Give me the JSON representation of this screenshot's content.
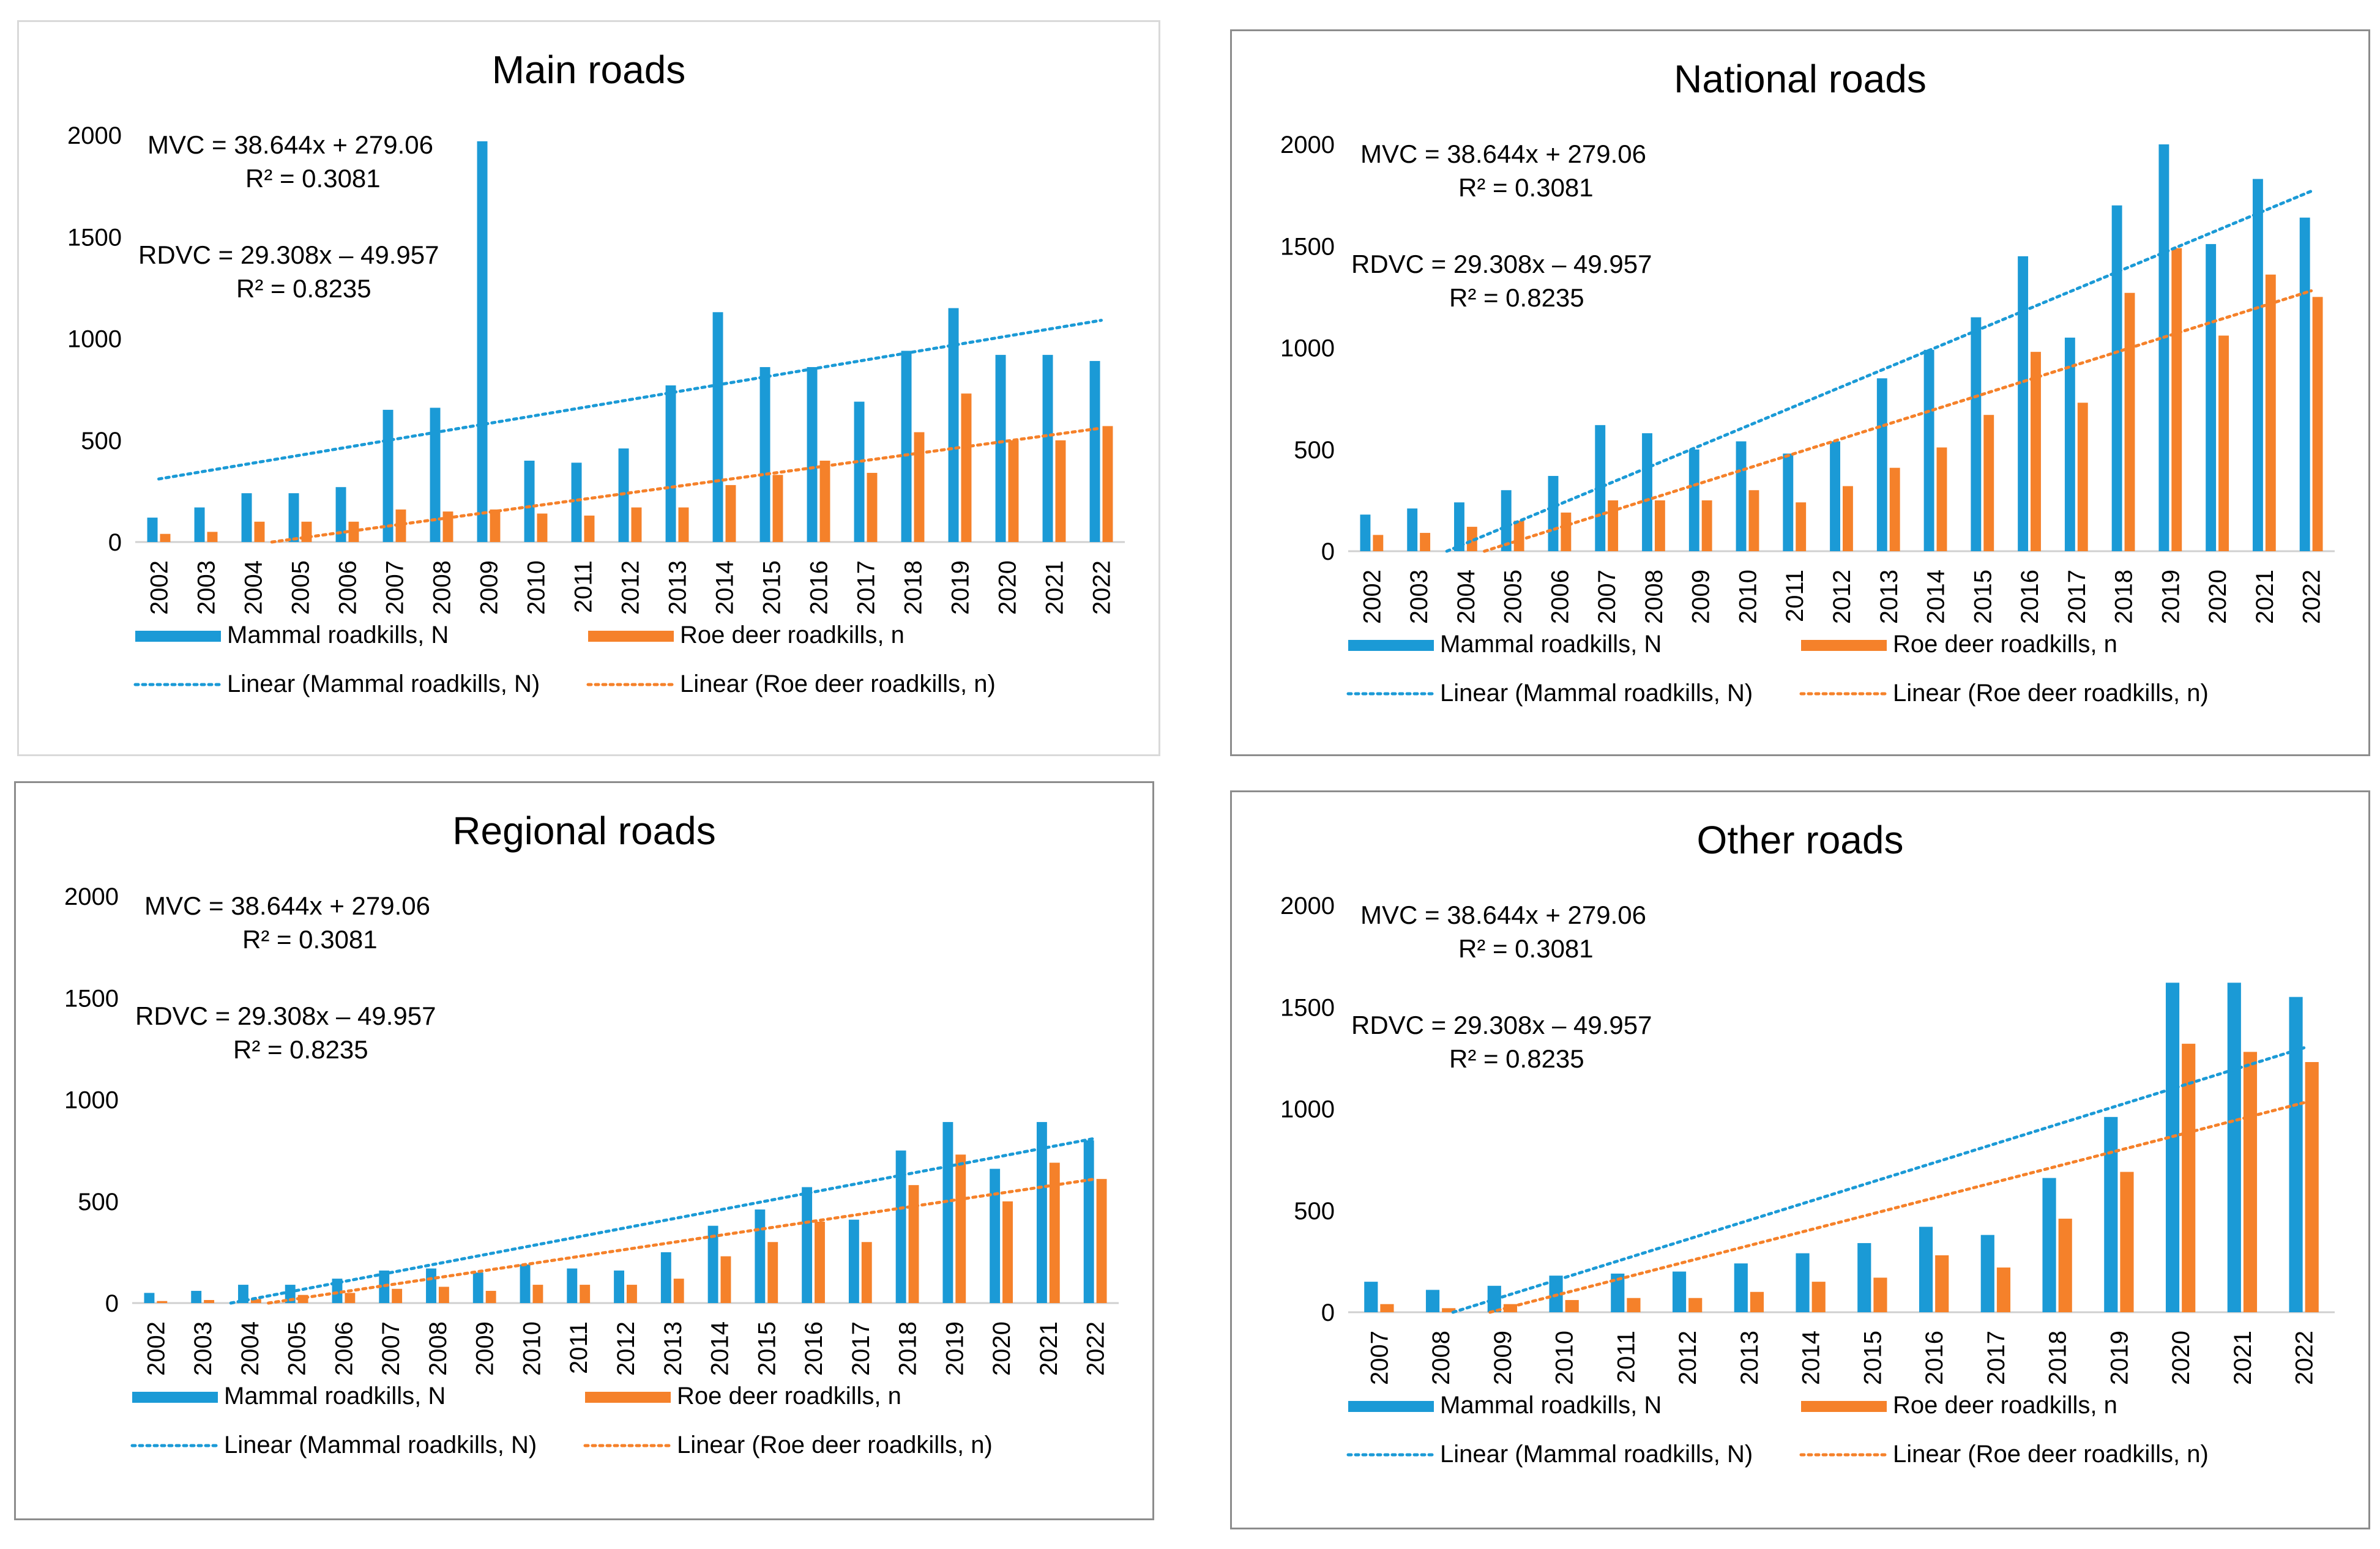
{
  "colors": {
    "mammal": "#1b9ad6",
    "roe": "#f5812a"
  },
  "legend": {
    "mammal": "Mammal roadkills, N",
    "roe": "Roe deer roadkills, n",
    "mammal_trend": "Linear (Mammal roadkills, N)",
    "roe_trend": "Linear (Roe deer roadkills, n)"
  },
  "equations": {
    "mvc": "MVC = 38.644x + 279.06",
    "mvc_r2": "R² = 0.3081",
    "rdvc": "RDVC = 29.308x – 49.957",
    "rdvc_r2": "R² = 0.8235"
  },
  "chart_data": [
    {
      "type": "bar",
      "title": "Main roads",
      "ylim": [
        0,
        2000
      ],
      "yticks": [
        "0",
        "500",
        "1000",
        "1500",
        "2000"
      ],
      "categories": [
        "2002",
        "2003",
        "2004",
        "2005",
        "2006",
        "2007",
        "2008",
        "2009",
        "2010",
        "2011",
        "2012",
        "2013",
        "2014",
        "2015",
        "2016",
        "2017",
        "2018",
        "2019",
        "2020",
        "2021",
        "2022"
      ],
      "series": [
        {
          "name": "Mammal roadkills, N",
          "values": [
            120,
            170,
            240,
            240,
            270,
            650,
            660,
            1970,
            400,
            390,
            460,
            770,
            1130,
            860,
            860,
            690,
            940,
            1150,
            920,
            920,
            890
          ]
        },
        {
          "name": "Roe deer roadkills, n",
          "values": [
            40,
            50,
            100,
            100,
            100,
            160,
            150,
            160,
            140,
            130,
            170,
            170,
            280,
            330,
            400,
            340,
            540,
            730,
            500,
            500,
            570
          ]
        }
      ],
      "trends": [
        {
          "name": "Linear (Mammal roadkills, N)",
          "y_start": 310,
          "y_end": 1090
        },
        {
          "name": "Linear (Roe deer roadkills, n)",
          "y_start": 0,
          "y_end": 560
        }
      ]
    },
    {
      "type": "bar",
      "title": "National roads",
      "ylim": [
        0,
        2000
      ],
      "yticks": [
        "0",
        "500",
        "1000",
        "1500",
        "2000"
      ],
      "categories": [
        "2002",
        "2003",
        "2004",
        "2005",
        "2006",
        "2007",
        "2008",
        "2009",
        "2010",
        "2011",
        "2012",
        "2013",
        "2014",
        "2015",
        "2016",
        "2017",
        "2018",
        "2019",
        "2020",
        "2021",
        "2022"
      ],
      "series": [
        {
          "name": "Mammal roadkills, N",
          "values": [
            180,
            210,
            240,
            300,
            370,
            620,
            580,
            500,
            540,
            480,
            540,
            850,
            990,
            1150,
            1450,
            1050,
            1700,
            2000,
            1510,
            1830,
            1640
          ]
        },
        {
          "name": "Roe deer roadkills, n",
          "values": [
            80,
            90,
            120,
            150,
            190,
            250,
            250,
            250,
            300,
            240,
            320,
            410,
            510,
            670,
            980,
            730,
            1270,
            1490,
            1060,
            1360,
            1250
          ]
        }
      ],
      "trends": [
        {
          "name": "Linear (Mammal roadkills, N)",
          "y_start": 0,
          "y_end": 1770
        },
        {
          "name": "Linear (Roe deer roadkills, n)",
          "y_start": 0,
          "y_end": 1280
        }
      ]
    },
    {
      "type": "bar",
      "title": "Regional roads",
      "ylim": [
        0,
        2000
      ],
      "yticks": [
        "0",
        "500",
        "1000",
        "1500",
        "2000"
      ],
      "categories": [
        "2002",
        "2003",
        "2004",
        "2005",
        "2006",
        "2007",
        "2008",
        "2009",
        "2010",
        "2011",
        "2012",
        "2013",
        "2014",
        "2015",
        "2016",
        "2017",
        "2018",
        "2019",
        "2020",
        "2021",
        "2022"
      ],
      "series": [
        {
          "name": "Mammal roadkills, N",
          "values": [
            50,
            60,
            90,
            90,
            120,
            160,
            170,
            150,
            190,
            170,
            160,
            250,
            380,
            460,
            570,
            410,
            750,
            890,
            660,
            890,
            800
          ]
        },
        {
          "name": "Roe deer roadkills, n",
          "values": [
            10,
            15,
            20,
            40,
            50,
            70,
            80,
            60,
            90,
            90,
            90,
            120,
            230,
            300,
            400,
            300,
            580,
            730,
            500,
            690,
            610
          ]
        }
      ],
      "trends": [
        {
          "name": "Linear (Mammal roadkills, N)",
          "y_start": 0,
          "y_end": 810
        },
        {
          "name": "Linear (Roe deer roadkills, n)",
          "y_start": 0,
          "y_end": 610
        }
      ]
    },
    {
      "type": "bar",
      "title": "Other roads",
      "ylim": [
        0,
        2000
      ],
      "yticks": [
        "0",
        "500",
        "1000",
        "1500",
        "2000"
      ],
      "categories": [
        "2007",
        "2008",
        "2009",
        "2010",
        "2011",
        "2012",
        "2013",
        "2014",
        "2015",
        "2016",
        "2017",
        "2018",
        "2019",
        "2020",
        "2021",
        "2022"
      ],
      "series": [
        {
          "name": "Mammal roadkills, N",
          "values": [
            150,
            110,
            130,
            180,
            190,
            200,
            240,
            290,
            340,
            420,
            380,
            660,
            960,
            1620,
            1620,
            1550
          ]
        },
        {
          "name": "Roe deer roadkills, n",
          "values": [
            40,
            20,
            40,
            60,
            70,
            70,
            100,
            150,
            170,
            280,
            220,
            460,
            690,
            1320,
            1280,
            1230
          ]
        }
      ],
      "trends": [
        {
          "name": "Linear (Mammal roadkills, N)",
          "y_start": 0,
          "y_end": 1300
        },
        {
          "name": "Linear (Roe deer roadkills, n)",
          "y_start": 0,
          "y_end": 1030
        }
      ]
    }
  ]
}
